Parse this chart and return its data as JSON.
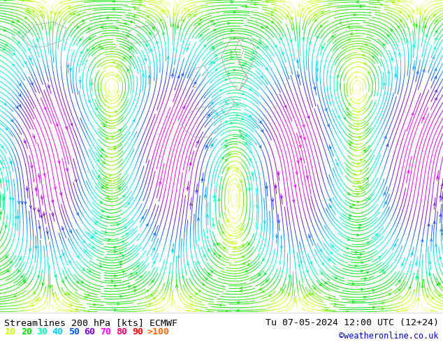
{
  "title_left": "Streamlines 200 hPa [kts] ECMWF",
  "title_right": "Tu 07-05-2024 12:00 UTC (12+24)",
  "credit": "©weatheronline.co.uk",
  "legend_values": [
    "10",
    "20",
    "30",
    "40",
    "50",
    "60",
    "70",
    "80",
    "90",
    ">100"
  ],
  "legend_colors": [
    "#c8ff00",
    "#00e400",
    "#00ffaa",
    "#00ccff",
    "#0055ff",
    "#8800cc",
    "#ff00ff",
    "#ff0066",
    "#ff0000",
    "#ff6600"
  ],
  "bg_color": "#ffffff",
  "map_bg": "#ffffff",
  "title_fontsize": 9.5,
  "legend_fontsize": 9.5,
  "credit_fontsize": 8.5,
  "title_color": "#000000",
  "credit_color": "#0000cc",
  "speed_colors": [
    [
      0,
      "#ffffff"
    ],
    [
      10,
      "#c8ff00"
    ],
    [
      20,
      "#00e400"
    ],
    [
      30,
      "#00ffcc"
    ],
    [
      40,
      "#00ccff"
    ],
    [
      50,
      "#0055ff"
    ],
    [
      60,
      "#8800cc"
    ],
    [
      70,
      "#ff00ff"
    ],
    [
      80,
      "#ff0066"
    ],
    [
      90,
      "#ff0000"
    ],
    [
      100,
      "#ff6600"
    ]
  ]
}
